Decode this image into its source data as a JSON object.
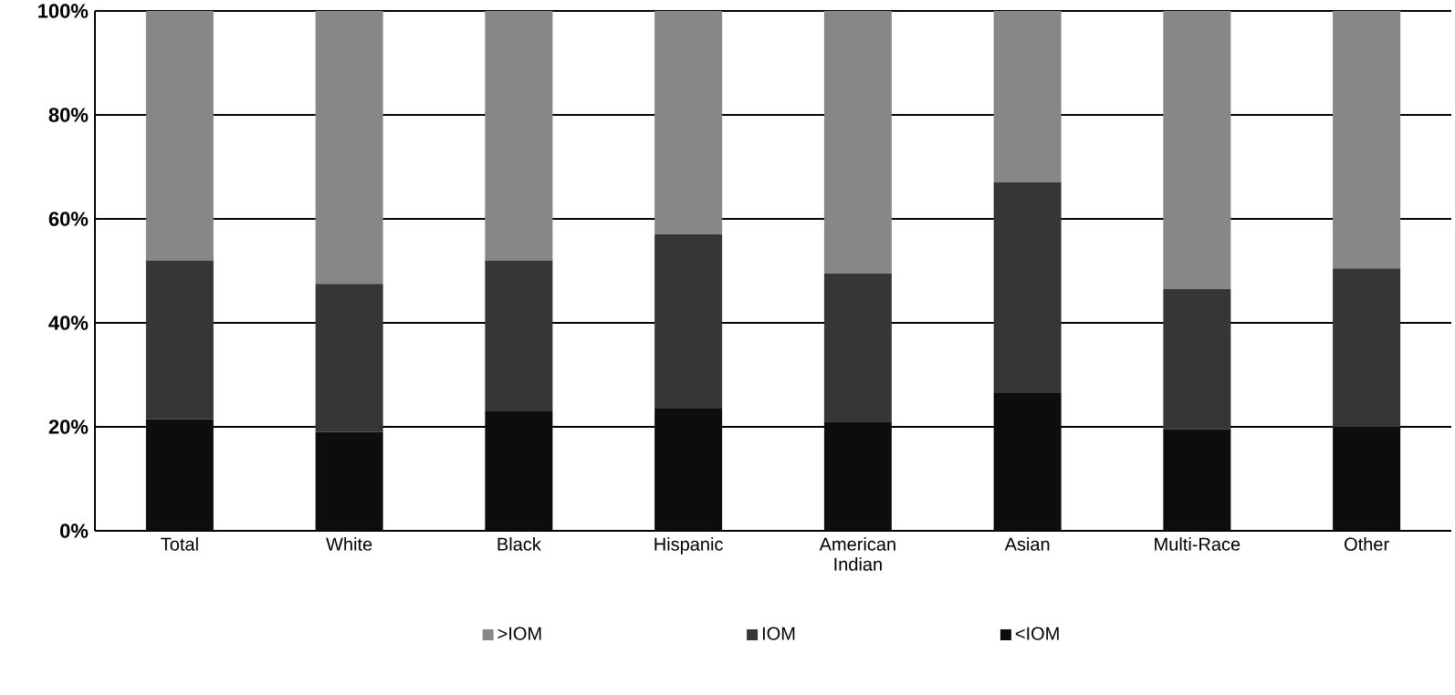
{
  "chart_data": {
    "type": "bar",
    "stacked": true,
    "categories": [
      "Total",
      "White",
      "Black",
      "Hispanic",
      "American Indian",
      "Asian",
      "Multi-Race",
      "Other"
    ],
    "series": [
      {
        "name": "<IOM",
        "color": "#0d0d0d",
        "values": [
          21.5,
          19,
          23,
          23.5,
          21,
          26.5,
          19.5,
          20
        ]
      },
      {
        "name": "IOM",
        "color": "#363636",
        "values": [
          30.5,
          28.5,
          29,
          33.5,
          28.5,
          40.5,
          27,
          30.5
        ]
      },
      {
        "name": ">IOM",
        "color": "#878787",
        "values": [
          48,
          52.5,
          48,
          43,
          50.5,
          33,
          53.5,
          49.5
        ]
      }
    ],
    "ylim": [
      0,
      100
    ],
    "yticks": [
      {
        "value": 0,
        "label": "0%"
      },
      {
        "value": 20,
        "label": "20%"
      },
      {
        "value": 40,
        "label": "40%"
      },
      {
        "value": 60,
        "label": "60%"
      },
      {
        "value": 80,
        "label": "80%"
      },
      {
        "value": 100,
        "label": "100%"
      }
    ],
    "grid": "y",
    "legend": "bottom"
  }
}
